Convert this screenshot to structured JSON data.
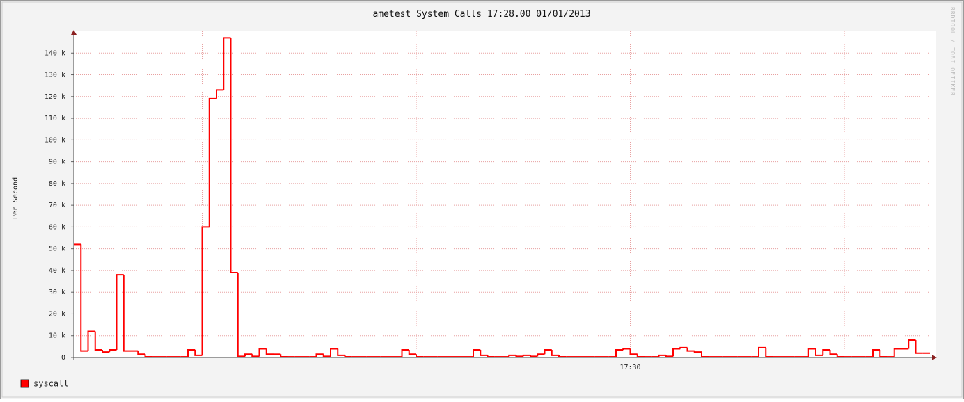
{
  "chart_data": {
    "type": "step",
    "title": "ametest System Calls 17:28.00 01/01/2013",
    "y_label": "Per Second",
    "watermark": "RRDTOOL / TOBI OETIKER",
    "categories": [
      null,
      null,
      null,
      null,
      null,
      null,
      null,
      null,
      null,
      null,
      null,
      null,
      null,
      null,
      null,
      null,
      null,
      null,
      null,
      null,
      null,
      null,
      null,
      null,
      null,
      null,
      null,
      null,
      null,
      null,
      null,
      null,
      null,
      null,
      null,
      null,
      null,
      null,
      null,
      null,
      null,
      null,
      null,
      null,
      null,
      null,
      null,
      null,
      null,
      null,
      null,
      null,
      null,
      null,
      null,
      null,
      null,
      null,
      null,
      null,
      null,
      null,
      null,
      null,
      null,
      null,
      null,
      null,
      null,
      null,
      null,
      null,
      null,
      null,
      null,
      null,
      null,
      null,
      "17:30",
      null,
      null,
      null,
      null,
      null,
      null,
      null,
      null,
      null,
      null,
      null,
      null,
      null,
      null,
      null,
      null,
      null,
      null,
      null,
      null,
      null,
      null,
      null,
      null,
      null,
      null,
      null,
      null,
      null,
      null,
      null,
      null,
      null,
      null,
      null,
      null,
      null,
      null,
      null,
      null,
      null
    ],
    "xgrid_every": 30,
    "series": [
      {
        "name": "syscall",
        "color": "#ff0000",
        "values": [
          52000,
          3000,
          12000,
          3500,
          2500,
          3500,
          38000,
          3000,
          3000,
          1500,
          300,
          300,
          300,
          300,
          300,
          300,
          3500,
          1000,
          60000,
          119000,
          123000,
          147000,
          39000,
          500,
          1500,
          500,
          4000,
          1500,
          1500,
          300,
          300,
          300,
          300,
          300,
          1500,
          500,
          4000,
          1000,
          300,
          300,
          300,
          300,
          300,
          300,
          300,
          300,
          3500,
          1500,
          300,
          300,
          300,
          300,
          300,
          300,
          300,
          300,
          3500,
          1000,
          300,
          300,
          300,
          1000,
          500,
          1000,
          500,
          1500,
          3500,
          1000,
          300,
          300,
          300,
          300,
          300,
          300,
          300,
          300,
          3500,
          4000,
          1500,
          300,
          300,
          300,
          1000,
          500,
          4000,
          4500,
          3000,
          2500,
          300,
          300,
          300,
          300,
          300,
          300,
          300,
          300,
          4500,
          300,
          300,
          300,
          300,
          300,
          300,
          4000,
          1000,
          3500,
          1500,
          300,
          300,
          300,
          300,
          300,
          3500,
          300,
          300,
          4000,
          4000,
          8000,
          2000,
          2000
        ]
      }
    ],
    "ylim": [
      0,
      150000
    ],
    "yticks": [
      0,
      {
        "value": 10000,
        "label": "10 k"
      },
      {
        "value": 20000,
        "label": "20 k"
      },
      {
        "value": 30000,
        "label": "30 k"
      },
      {
        "value": 40000,
        "label": "40 k"
      },
      {
        "value": 50000,
        "label": "50 k"
      },
      {
        "value": 60000,
        "label": "60 k"
      },
      {
        "value": 70000,
        "label": "70 k"
      },
      {
        "value": 80000,
        "label": "80 k"
      },
      {
        "value": 90000,
        "label": "90 k"
      },
      {
        "value": 100000,
        "label": "100 k"
      },
      {
        "value": 110000,
        "label": "110 k"
      },
      {
        "value": 120000,
        "label": "120 k"
      },
      {
        "value": 130000,
        "label": "130 k"
      },
      {
        "value": 140000,
        "label": "140 k"
      }
    ],
    "grid": true
  }
}
